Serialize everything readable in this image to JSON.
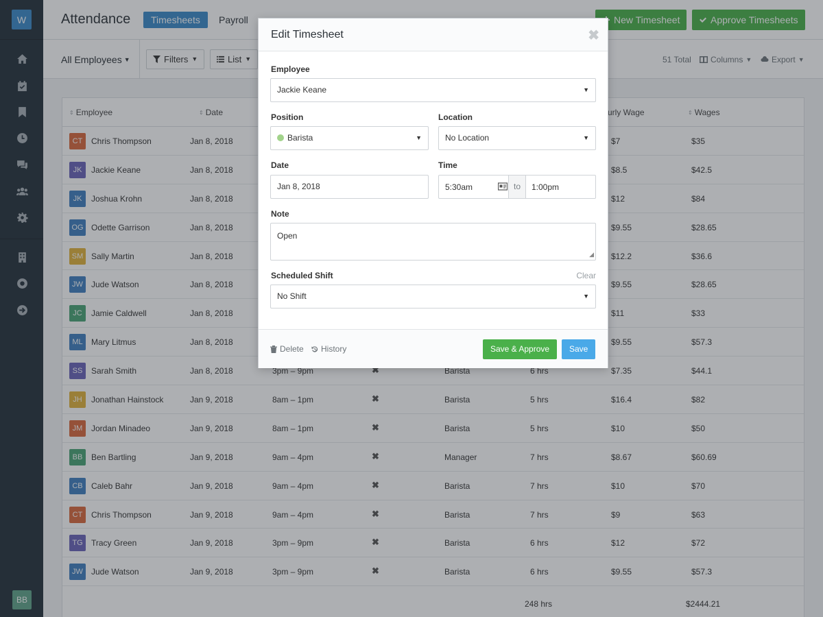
{
  "app": {
    "logo_letter": "W",
    "user_initials": "BB"
  },
  "header": {
    "title": "Attendance",
    "tabs": [
      "Timesheets",
      "Payroll"
    ],
    "new_timesheet": "New Timesheet",
    "approve_timesheets": "Approve Timesheets"
  },
  "toolbar": {
    "employee_filter": "All Employees",
    "filters": "Filters",
    "view": "List",
    "total": "51 Total",
    "columns": "Columns",
    "export": "Export"
  },
  "table": {
    "headers": {
      "employee": "Employee",
      "date": "Date",
      "hourly_wage": "urly Wage",
      "wages": "Wages"
    },
    "rows": [
      {
        "initials": "CT",
        "color": "#d9683c",
        "name": "Chris Thompson",
        "date": "Jan 8, 2018",
        "shift": "",
        "position": "",
        "hours": "",
        "rate": "$7",
        "wages": "$35"
      },
      {
        "initials": "JK",
        "color": "#6a63b8",
        "name": "Jackie Keane",
        "date": "Jan 8, 2018",
        "shift": "",
        "position": "",
        "hours": "",
        "rate": "$8.5",
        "wages": "$42.5"
      },
      {
        "initials": "JK",
        "color": "#3f7fbf",
        "name": "Joshua Krohn",
        "date": "Jan 8, 2018",
        "shift": "",
        "position": "",
        "hours": "",
        "rate": "$12",
        "wages": "$84"
      },
      {
        "initials": "OG",
        "color": "#3f7fbf",
        "name": "Odette Garrison",
        "date": "Jan 8, 2018",
        "shift": "",
        "position": "",
        "hours": "",
        "rate": "$9.55",
        "wages": "$28.65"
      },
      {
        "initials": "SM",
        "color": "#e0b23a",
        "name": "Sally Martin",
        "date": "Jan 8, 2018",
        "shift": "",
        "position": "",
        "hours": "",
        "rate": "$12.2",
        "wages": "$36.6"
      },
      {
        "initials": "JW",
        "color": "#3f7fbf",
        "name": "Jude Watson",
        "date": "Jan 8, 2018",
        "shift": "",
        "position": "",
        "hours": "",
        "rate": "$9.55",
        "wages": "$28.65"
      },
      {
        "initials": "JC",
        "color": "#4aa374",
        "name": "Jamie Caldwell",
        "date": "Jan 8, 2018",
        "shift": "",
        "position": "",
        "hours": "",
        "rate": "$11",
        "wages": "$33"
      },
      {
        "initials": "ML",
        "color": "#3f7fbf",
        "name": "Mary Litmus",
        "date": "Jan 8, 2018",
        "shift": "",
        "position": "",
        "hours": "",
        "rate": "$9.55",
        "wages": "$57.3"
      },
      {
        "initials": "SS",
        "color": "#6a63b8",
        "name": "Sarah Smith",
        "date": "Jan 8, 2018",
        "shift": "3pm – 9pm",
        "position": "Barista",
        "hours": "6 hrs",
        "rate": "$7.35",
        "wages": "$44.1"
      },
      {
        "initials": "JH",
        "color": "#e0b23a",
        "name": "Jonathan Hainstock",
        "date": "Jan 9, 2018",
        "shift": "8am – 1pm",
        "position": "Barista",
        "hours": "5 hrs",
        "rate": "$16.4",
        "wages": "$82"
      },
      {
        "initials": "JM",
        "color": "#d9683c",
        "name": "Jordan Minadeo",
        "date": "Jan 9, 2018",
        "shift": "8am – 1pm",
        "position": "Barista",
        "hours": "5 hrs",
        "rate": "$10",
        "wages": "$50"
      },
      {
        "initials": "BB",
        "color": "#4aa374",
        "name": "Ben Bartling",
        "date": "Jan 9, 2018",
        "shift": "9am – 4pm",
        "position": "Manager",
        "hours": "7 hrs",
        "rate": "$8.67",
        "wages": "$60.69"
      },
      {
        "initials": "CB",
        "color": "#3f7fbf",
        "name": "Caleb Bahr",
        "date": "Jan 9, 2018",
        "shift": "9am – 4pm",
        "position": "Barista",
        "hours": "7 hrs",
        "rate": "$10",
        "wages": "$70"
      },
      {
        "initials": "CT",
        "color": "#d9683c",
        "name": "Chris Thompson",
        "date": "Jan 9, 2018",
        "shift": "9am – 4pm",
        "position": "Barista",
        "hours": "7 hrs",
        "rate": "$9",
        "wages": "$63"
      },
      {
        "initials": "TG",
        "color": "#6a63b8",
        "name": "Tracy Green",
        "date": "Jan 9, 2018",
        "shift": "3pm – 9pm",
        "position": "Barista",
        "hours": "6 hrs",
        "rate": "$12",
        "wages": "$72"
      },
      {
        "initials": "JW",
        "color": "#3f7fbf",
        "name": "Jude Watson",
        "date": "Jan 9, 2018",
        "shift": "3pm – 9pm",
        "position": "Barista",
        "hours": "6 hrs",
        "rate": "$9.55",
        "wages": "$57.3"
      }
    ],
    "totals": {
      "hours": "248 hrs",
      "wages": "$2444.21"
    }
  },
  "modal": {
    "title": "Edit Timesheet",
    "employee_label": "Employee",
    "employee_value": "Jackie Keane",
    "position_label": "Position",
    "position_value": "Barista",
    "location_label": "Location",
    "location_value": "No Location",
    "date_label": "Date",
    "date_value": "Jan 8, 2018",
    "time_label": "Time",
    "time_start": "5:30am",
    "time_to": "to",
    "time_end": "1:00pm",
    "note_label": "Note",
    "note_value": "Open",
    "scheduled_label": "Scheduled Shift",
    "clear": "Clear",
    "scheduled_value": "No Shift",
    "delete": "Delete",
    "history": "History",
    "save_approve": "Save & Approve",
    "save": "Save"
  }
}
